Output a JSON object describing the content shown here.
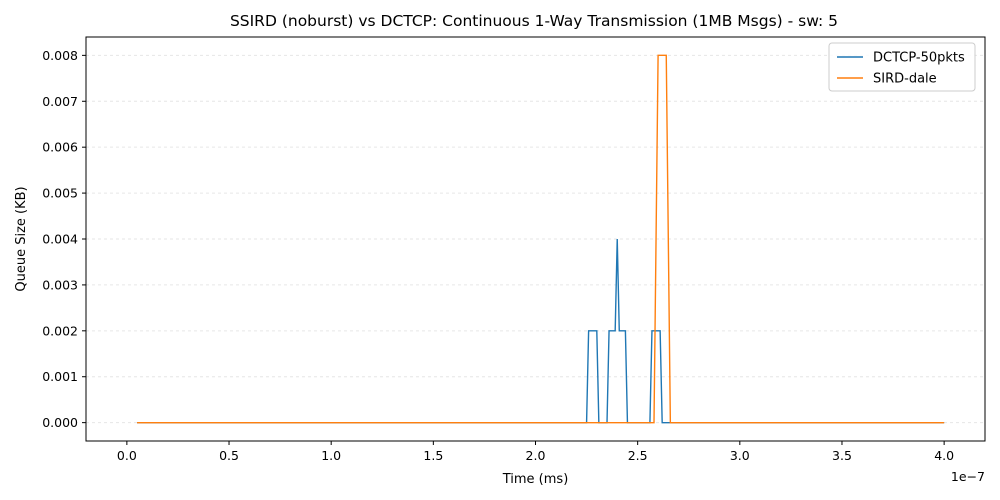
{
  "chart_data": {
    "type": "line",
    "title": "SSIRD (noburst) vs DCTCP: Continuous 1-Way Transmission (1MB Msgs) - sw: 5",
    "xlabel": "Time (ms)",
    "ylabel": "Queue Size (KB)",
    "x_offset_label": "1e−7",
    "xlim": [
      -0.2,
      4.2
    ],
    "ylim": [
      -0.0004,
      0.0084
    ],
    "x_ticks": [
      0.0,
      0.5,
      1.0,
      1.5,
      2.0,
      2.5,
      3.0,
      3.5,
      4.0
    ],
    "x_tick_labels": [
      "0.0",
      "0.5",
      "1.0",
      "1.5",
      "2.0",
      "2.5",
      "3.0",
      "3.5",
      "4.0"
    ],
    "y_ticks": [
      0.0,
      0.001,
      0.002,
      0.003,
      0.004,
      0.005,
      0.006,
      0.007,
      0.008
    ],
    "y_tick_labels": [
      "0.000",
      "0.001",
      "0.002",
      "0.003",
      "0.004",
      "0.005",
      "0.006",
      "0.007",
      "0.008"
    ],
    "grid": "horizontal",
    "legend_position": "top-right",
    "series": [
      {
        "name": "DCTCP-50pkts",
        "color": "#1f77b4",
        "x": [
          0.05,
          2.25,
          2.26,
          2.3,
          2.31,
          2.35,
          2.36,
          2.39,
          2.4,
          2.41,
          2.44,
          2.45,
          2.56,
          2.57,
          2.61,
          2.62,
          2.64,
          4.0
        ],
        "y": [
          0,
          0,
          0.002,
          0.002,
          0,
          0,
          0.002,
          0.002,
          0.004,
          0.002,
          0.002,
          0,
          0,
          0.002,
          0.002,
          0,
          0,
          0
        ]
      },
      {
        "name": "SIRD-dale",
        "color": "#ff7f0e",
        "x": [
          0.05,
          2.58,
          2.6,
          2.64,
          2.66,
          4.0
        ],
        "y": [
          0,
          0,
          0.008,
          0.008,
          0,
          0
        ]
      }
    ]
  }
}
